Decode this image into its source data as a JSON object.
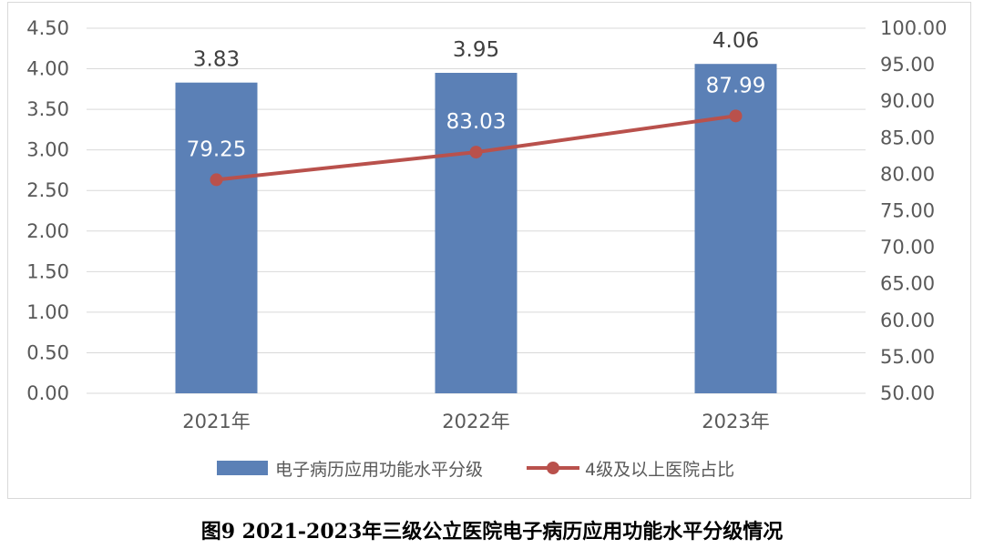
{
  "caption": "图9  2021-2023年三级公立医院电子病历应用功能水平分级情况",
  "colors": {
    "bar": "#5b80b6",
    "line": "#b9514c",
    "grid": "#d9d9d9",
    "text": "#595959"
  },
  "chart_data": {
    "type": "bar+line",
    "title": "",
    "categories": [
      "2021年",
      "2022年",
      "2023年"
    ],
    "y_left": {
      "ylim": [
        0,
        4.5
      ],
      "ticks": [
        "0.00",
        "0.50",
        "1.00",
        "1.50",
        "2.00",
        "2.50",
        "3.00",
        "3.50",
        "4.00",
        "4.50"
      ]
    },
    "y_right": {
      "ylim": [
        50,
        100
      ],
      "ticks": [
        "50.00",
        "55.00",
        "60.00",
        "65.00",
        "70.00",
        "75.00",
        "80.00",
        "85.00",
        "90.00",
        "95.00",
        "100.00"
      ]
    },
    "grid": true,
    "legend_position": "bottom",
    "series": [
      {
        "name": "电子病历应用功能水平分级",
        "type": "bar",
        "axis": "left",
        "values": [
          3.83,
          3.95,
          4.06
        ],
        "labels": [
          "3.83",
          "3.95",
          "4.06"
        ]
      },
      {
        "name": "4级及以上医院占比",
        "type": "line",
        "axis": "right",
        "values": [
          79.25,
          83.03,
          87.99
        ],
        "labels": [
          "79.25",
          "83.03",
          "87.99"
        ]
      }
    ]
  }
}
